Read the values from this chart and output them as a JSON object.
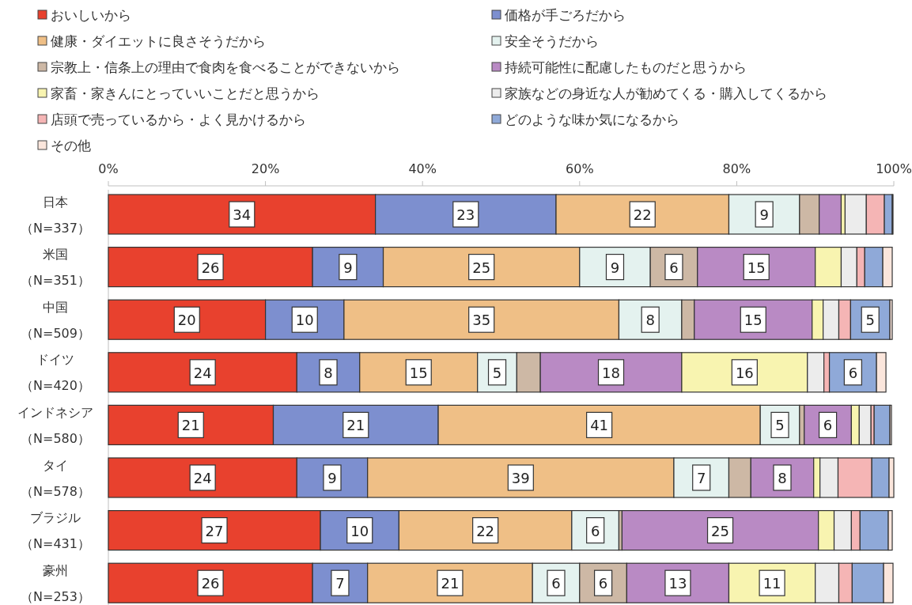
{
  "chart_data": {
    "type": "bar",
    "orientation": "horizontal",
    "stacked": true,
    "legend": "top",
    "categories": [
      "日本（N=337）",
      "米国（N=351）",
      "中国（N=509）",
      "ドイツ（N=420）",
      "インドネシア（N=580）",
      "タイ（N=578）",
      "ブラジル（N=431）",
      "豪州（N=253）"
    ],
    "xlim": [
      0,
      100
    ],
    "xticks": [
      {
        "value": 0,
        "label": "0%"
      },
      {
        "value": 20,
        "label": "20%"
      },
      {
        "value": 40,
        "label": "40%"
      },
      {
        "value": 60,
        "label": "60%"
      },
      {
        "value": 80,
        "label": "80%"
      },
      {
        "value": 100,
        "label": "100%"
      }
    ],
    "series": [
      {
        "name": "おいしいから",
        "color": "#e8412e",
        "values": [
          34,
          26,
          20,
          24,
          21,
          24,
          27,
          26
        ],
        "value_labels": [
          "34",
          "26",
          "20",
          "24",
          "21",
          "24",
          "27",
          "26"
        ]
      },
      {
        "name": "価格が手ごろだから",
        "color": "#7d8fcf",
        "values": [
          23,
          9,
          10,
          8,
          21,
          9,
          10,
          7
        ],
        "value_labels": [
          "23",
          "9",
          "10",
          "8",
          "21",
          "9",
          "10",
          "7"
        ]
      },
      {
        "name": "健康・ダイエットに良さそうだから",
        "color": "#efbf86",
        "values": [
          22,
          25,
          35,
          15,
          41,
          39,
          22,
          21
        ],
        "value_labels": [
          "22",
          "25",
          "35",
          "15",
          "41",
          "39",
          "22",
          "21"
        ]
      },
      {
        "name": "安全そうだから",
        "color": "#e4f2ef",
        "values": [
          9,
          9,
          8,
          5,
          5,
          7,
          6,
          6
        ],
        "value_labels": [
          "9",
          "9",
          "8",
          "5",
          "5",
          "7",
          "6",
          "6"
        ]
      },
      {
        "name": "宗教上・信条上の理由で食肉を食べることができないから",
        "color": "#cdb8a5",
        "values": [
          2.5,
          6,
          1.6,
          3,
          0.6,
          2.8,
          0.4,
          6
        ],
        "value_labels": [
          null,
          "6",
          null,
          null,
          null,
          null,
          null,
          "6"
        ]
      },
      {
        "name": "持続可能性に配慮したものだと思うから",
        "color": "#b98ac4",
        "values": [
          2.8,
          15,
          15,
          18,
          6,
          8,
          25,
          13
        ],
        "value_labels": [
          null,
          "15",
          "15",
          "18",
          "6",
          "8",
          "25",
          "13"
        ]
      },
      {
        "name": "家畜・家きんにとっていいことだと思うから",
        "color": "#f8f4b0",
        "values": [
          0.5,
          3.3,
          1.4,
          16,
          1,
          0.8,
          2,
          11
        ],
        "value_labels": [
          null,
          null,
          null,
          "16",
          null,
          null,
          null,
          "11"
        ]
      },
      {
        "name": "家族などの身近な人が勧めてくる・購入してくるから",
        "color": "#ececec",
        "values": [
          2.7,
          2,
          2,
          2.1,
          1.5,
          2.3,
          2.2,
          3
        ],
        "value_labels": [
          null,
          null,
          null,
          null,
          null,
          null,
          null,
          null
        ]
      },
      {
        "name": "店頭で売っているから・よく見かけるから",
        "color": "#f5b5b5",
        "values": [
          2.3,
          1,
          1.5,
          0.7,
          0.4,
          4.3,
          1.1,
          1.7
        ],
        "value_labels": [
          null,
          null,
          null,
          null,
          null,
          null,
          null,
          null
        ]
      },
      {
        "name": "どのような味か気になるから",
        "color": "#8fa9d8",
        "values": [
          1,
          2.3,
          5,
          6,
          2,
          2.2,
          3.6,
          4
        ],
        "value_labels": [
          null,
          null,
          "5",
          "6",
          null,
          null,
          null,
          null
        ]
      },
      {
        "name": "その他",
        "color": "#fbe6dc",
        "values": [
          0.1,
          1.2,
          0.3,
          1.2,
          0.2,
          0.6,
          0.5,
          1.2
        ],
        "value_labels": [
          null,
          null,
          null,
          null,
          null,
          null,
          null,
          null
        ]
      }
    ]
  }
}
